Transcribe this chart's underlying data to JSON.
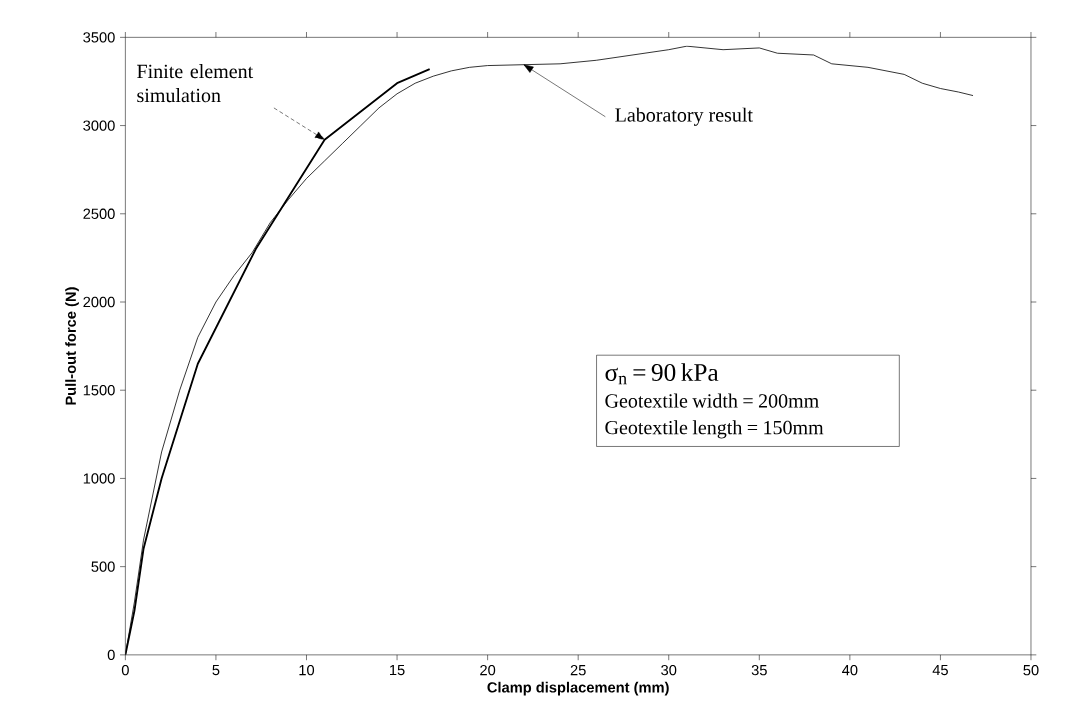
{
  "chart_data": {
    "type": "line",
    "xlabel": "Clamp displacement (mm)",
    "ylabel": "Pull-out force (N)",
    "xlim": [
      0,
      50
    ],
    "xticks": [
      0,
      5,
      10,
      15,
      20,
      25,
      30,
      35,
      40,
      45,
      50
    ],
    "ylim": [
      0,
      3500
    ],
    "yticks": [
      0,
      500,
      1000,
      1500,
      2000,
      2500,
      3000,
      3500
    ],
    "grid": false,
    "marker": "none",
    "line_style": "solid",
    "series": [
      {
        "color": "#000000",
        "x": [
          0,
          0.5,
          1,
          2,
          3,
          4,
          5,
          6,
          7,
          8,
          9,
          10,
          11,
          12,
          13,
          14,
          15,
          16,
          17,
          18,
          19,
          20,
          22,
          24,
          26,
          28,
          30,
          31,
          33,
          35,
          36,
          38,
          39,
          41,
          43,
          44,
          45,
          46,
          46.8
        ],
        "values": [
          0,
          300,
          650,
          1150,
          1500,
          1800,
          2000,
          2150,
          2280,
          2450,
          2580,
          2700,
          2800,
          2900,
          3000,
          3100,
          3180,
          3240,
          3280,
          3310,
          3330,
          3340,
          3345,
          3350,
          3370,
          3400,
          3430,
          3450,
          3430,
          3440,
          3410,
          3400,
          3350,
          3330,
          3290,
          3240,
          3210,
          3190,
          3170
        ]
      },
      {
        "color": "#000000",
        "x": [
          0,
          0.5,
          1,
          2,
          4,
          7.2,
          11,
          15,
          16.8
        ],
        "values": [
          0,
          250,
          600,
          1000,
          1650,
          2300,
          2920,
          3240,
          3320
        ]
      }
    ],
    "annotations": [
      {
        "text": "Finite element simulation",
        "x": 11,
        "y": 2920
      },
      {
        "text": "Laboratory result",
        "x": 22,
        "y": 3345
      },
      "σ$_{n}$ = 90 kPa",
      "Geotextile width = 200mm",
      "Geotextile length = 150mm"
    ]
  }
}
